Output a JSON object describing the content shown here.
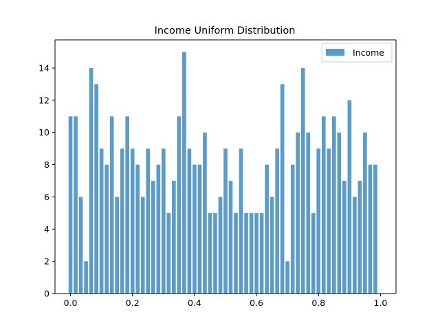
{
  "chart_data": {
    "type": "bar",
    "title": "Income Uniform Distribution",
    "xlabel": "",
    "ylabel": "",
    "xlim": [
      -0.05,
      1.05
    ],
    "ylim": [
      0,
      15.75
    ],
    "x_ticks": [
      0.0,
      0.2,
      0.4,
      0.6,
      0.8,
      1.0
    ],
    "x_tick_labels": [
      "0.0",
      "0.2",
      "0.4",
      "0.6",
      "0.8",
      "1.0"
    ],
    "y_ticks": [
      0,
      2,
      4,
      6,
      8,
      10,
      12,
      14
    ],
    "y_tick_labels": [
      "0",
      "2",
      "4",
      "6",
      "8",
      "10",
      "12",
      "14"
    ],
    "grid": false,
    "legend_position": "top-right",
    "series": [
      {
        "name": "Income",
        "color": "#5b9bc8",
        "x_start": 0.0,
        "x_end": 1.0,
        "bins": 60,
        "values": [
          11,
          11,
          6,
          2,
          14,
          13,
          9,
          8,
          11,
          6,
          9,
          11,
          9,
          8,
          6,
          9,
          7,
          8,
          9,
          5,
          7,
          11,
          15,
          9,
          8,
          8,
          10,
          5,
          5,
          6,
          9,
          7,
          5,
          9,
          5,
          5,
          5,
          5,
          8,
          6,
          9,
          13,
          2,
          8,
          10,
          14,
          10,
          5,
          9,
          11,
          9,
          11,
          10,
          7,
          12,
          6,
          7,
          10,
          8,
          8
        ]
      }
    ]
  }
}
